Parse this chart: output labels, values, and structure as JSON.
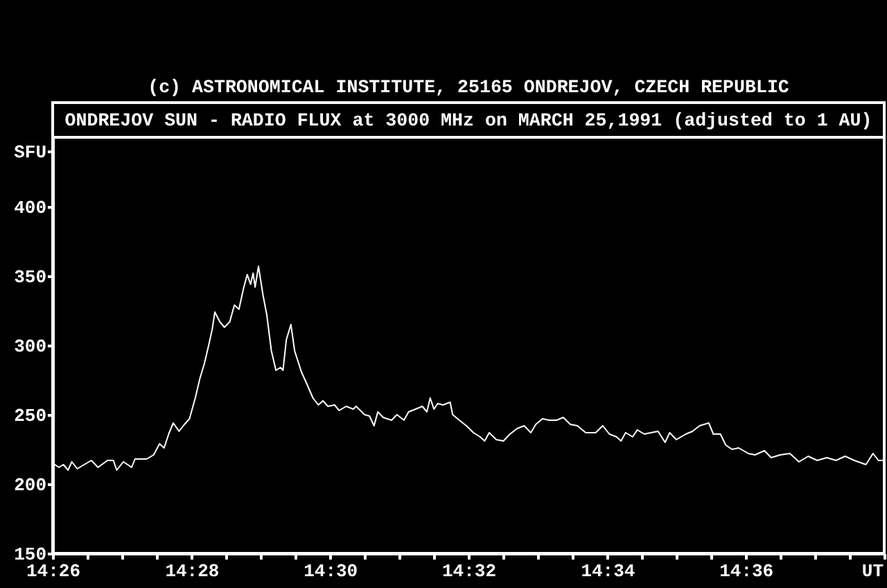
{
  "chart_data": {
    "type": "line",
    "title": "(c) ASTRONOMICAL INSTITUTE, 25165 ONDREJOV, CZECH REPUBLIC",
    "subtitle": "ONDREJOV SUN - RADIO FLUX at 3000 MHz on MARCH 25,1991 (adjusted to 1 AU)",
    "xlabel": "UT",
    "ylabel": "SFU",
    "x": [
      14.4333,
      14.4348,
      14.4359,
      14.437,
      14.4379,
      14.4392,
      14.4409,
      14.4426,
      14.4442,
      14.4465,
      14.4479,
      14.4487,
      14.4503,
      14.4523,
      14.4531,
      14.4559,
      14.4576,
      14.459,
      14.4601,
      14.4612,
      14.4623,
      14.4637,
      14.465,
      14.4662,
      14.4676,
      14.4687,
      14.4698,
      14.4709,
      14.4717,
      14.4723,
      14.4735,
      14.4746,
      14.4759,
      14.477,
      14.4781,
      14.4792,
      14.4801,
      14.4809,
      14.4815,
      14.482,
      14.4828,
      14.4839,
      14.4848,
      14.4859,
      14.487,
      14.4881,
      14.4887,
      14.4895,
      14.4906,
      14.4915,
      14.4931,
      14.4946,
      14.4959,
      14.4972,
      14.4983,
      14.4995,
      14.5011,
      14.5022,
      14.5039,
      14.5056,
      14.5063,
      14.5083,
      14.5095,
      14.5106,
      14.5115,
      14.5128,
      14.5148,
      14.5161,
      14.5178,
      14.5189,
      14.5206,
      14.5222,
      14.5233,
      14.5241,
      14.525,
      14.5259,
      14.5272,
      14.5289,
      14.5295,
      14.5311,
      14.5328,
      14.5345,
      14.5361,
      14.5372,
      14.5383,
      14.54,
      14.5417,
      14.5433,
      14.545,
      14.5467,
      14.5483,
      14.5495,
      14.5511,
      14.5528,
      14.5545,
      14.5561,
      14.5578,
      14.5595,
      14.5615,
      14.5639,
      14.5656,
      14.5672,
      14.5689,
      14.57,
      14.5711,
      14.5728,
      14.5739,
      14.5756,
      14.5772,
      14.5789,
      14.5806,
      14.5817,
      14.5833,
      14.5856,
      14.5872,
      14.5889,
      14.59,
      14.5911,
      14.5922,
      14.5939,
      14.5952,
      14.5967,
      14.5983,
      14.6006,
      14.6022,
      14.6045,
      14.6061,
      14.6083,
      14.6106,
      14.6128,
      14.615,
      14.6172,
      14.6195,
      14.6217,
      14.6239,
      14.6261,
      14.6289,
      14.6306,
      14.6319,
      14.6333
    ],
    "series": [
      {
        "color": "#ffffff",
        "values": [
          215,
          212,
          214,
          210,
          216,
          211,
          214,
          217,
          212,
          217,
          217,
          210,
          216,
          212,
          218,
          218,
          221,
          229,
          226,
          236,
          244,
          238,
          243,
          247,
          262,
          276,
          287,
          301,
          312,
          324,
          317,
          313,
          317,
          329,
          326,
          341,
          351,
          344,
          352,
          342,
          357,
          336,
          322,
          296,
          282,
          284,
          282,
          304,
          315,
          296,
          281,
          271,
          262,
          257,
          260,
          256,
          257,
          253,
          256,
          254,
          256,
          250,
          249,
          242,
          252,
          248,
          246,
          250,
          246,
          252,
          254,
          256,
          252,
          262,
          254,
          258,
          257,
          259,
          250,
          246,
          242,
          237,
          234,
          231,
          237,
          232,
          231,
          236,
          240,
          242,
          237,
          243,
          247,
          246,
          246,
          248,
          243,
          242,
          237,
          237,
          242,
          236,
          234,
          231,
          237,
          234,
          239,
          236,
          237,
          238,
          230,
          237,
          232,
          236,
          238,
          242,
          243,
          244,
          236,
          236,
          228,
          225,
          226,
          222,
          221,
          224,
          219,
          221,
          222,
          216,
          220,
          217,
          219,
          217,
          220,
          217,
          214,
          222,
          217,
          217
        ]
      }
    ],
    "xlim": [
      14.4333,
      14.6333
    ],
    "ylim": [
      150,
      450
    ],
    "xticks": [
      {
        "value": 14.4333,
        "label": "14:26"
      },
      {
        "value": 14.4417,
        "label": null
      },
      {
        "value": 14.45,
        "label": null
      },
      {
        "value": 14.4583,
        "label": null
      },
      {
        "value": 14.4667,
        "label": "14:28"
      },
      {
        "value": 14.475,
        "label": null
      },
      {
        "value": 14.4833,
        "label": null
      },
      {
        "value": 14.4917,
        "label": null
      },
      {
        "value": 14.5,
        "label": "14:30"
      },
      {
        "value": 14.5083,
        "label": null
      },
      {
        "value": 14.5167,
        "label": null
      },
      {
        "value": 14.525,
        "label": null
      },
      {
        "value": 14.5333,
        "label": "14:32"
      },
      {
        "value": 14.5417,
        "label": null
      },
      {
        "value": 14.55,
        "label": null
      },
      {
        "value": 14.5583,
        "label": null
      },
      {
        "value": 14.5667,
        "label": "14:34"
      },
      {
        "value": 14.575,
        "label": null
      },
      {
        "value": 14.5833,
        "label": null
      },
      {
        "value": 14.5917,
        "label": null
      },
      {
        "value": 14.6,
        "label": "14:36"
      },
      {
        "value": 14.6083,
        "label": null
      },
      {
        "value": 14.6167,
        "label": null
      },
      {
        "value": 14.625,
        "label": null
      },
      {
        "value": 14.6333,
        "label": null
      }
    ],
    "yticks": [
      150,
      200,
      250,
      300,
      350,
      400,
      {
        "value": 440,
        "label": null
      }
    ],
    "marker": "none",
    "line_style": "solid"
  }
}
